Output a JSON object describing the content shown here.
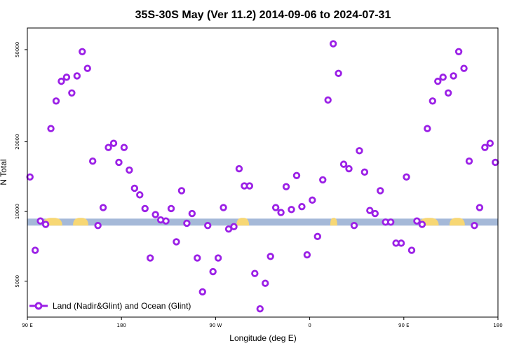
{
  "chart_data": {
    "type": "scatter",
    "title": "35S-30S May (Ver 11.2)   2014-09-06 to 2024-07-31",
    "xlabel": "Longitude (deg E)",
    "ylabel": "N Total",
    "xlim": [
      90,
      540
    ],
    "ylim_log": [
      3500,
      62000
    ],
    "x_ticks": [
      {
        "value": 90,
        "label": "90 E"
      },
      {
        "value": 180,
        "label": "180"
      },
      {
        "value": 270,
        "label": "90 W"
      },
      {
        "value": 360,
        "label": "0"
      },
      {
        "value": 450,
        "label": "90 E"
      },
      {
        "value": 540,
        "label": "180"
      }
    ],
    "y_ticks": [
      {
        "value": 5000,
        "label": "5000"
      },
      {
        "value": 10000,
        "label": "10000"
      },
      {
        "value": 20000,
        "label": "20000"
      },
      {
        "value": 50000,
        "label": "50000"
      }
    ],
    "series": [
      {
        "name": "Land (Nadir&Glint) and Ocean (Glint)",
        "color": "#9b20e6",
        "points": [
          [
            92.5,
            14100
          ],
          [
            97.5,
            6800
          ],
          [
            102.5,
            9100
          ],
          [
            107.5,
            8800
          ],
          [
            112.5,
            22800
          ],
          [
            117.5,
            30000
          ],
          [
            122.5,
            36500
          ],
          [
            127.5,
            38000
          ],
          [
            132.5,
            32500
          ],
          [
            137.5,
            38500
          ],
          [
            142.5,
            49000
          ],
          [
            147.5,
            41500
          ],
          [
            152.5,
            16500
          ],
          [
            157.5,
            8700
          ],
          [
            162.5,
            10400
          ],
          [
            167.5,
            18900
          ],
          [
            172.5,
            19700
          ],
          [
            177.5,
            16300
          ],
          [
            182.5,
            18900
          ],
          [
            187.5,
            15100
          ],
          [
            192.5,
            12600
          ],
          [
            197.5,
            11800
          ],
          [
            202.5,
            10300
          ],
          [
            207.5,
            6300
          ],
          [
            212.5,
            9700
          ],
          [
            217.5,
            9200
          ],
          [
            222.5,
            9100
          ],
          [
            227.5,
            10300
          ],
          [
            232.5,
            7400
          ],
          [
            237.5,
            12300
          ],
          [
            242.5,
            8900
          ],
          [
            247.5,
            9800
          ],
          [
            252.5,
            6300
          ],
          [
            257.5,
            4500
          ],
          [
            262.5,
            8700
          ],
          [
            267.5,
            5500
          ],
          [
            272.5,
            6300
          ],
          [
            277.5,
            10400
          ],
          [
            282.5,
            8400
          ],
          [
            287.5,
            8600
          ],
          [
            292.5,
            15300
          ],
          [
            297.5,
            12900
          ],
          [
            302.5,
            12900
          ],
          [
            307.5,
            5400
          ],
          [
            312.5,
            3800
          ],
          [
            317.5,
            4900
          ],
          [
            322.5,
            6400
          ],
          [
            327.5,
            10400
          ],
          [
            332.5,
            9900
          ],
          [
            337.5,
            12800
          ],
          [
            342.5,
            10200
          ],
          [
            347.5,
            14300
          ],
          [
            352.5,
            10500
          ],
          [
            357.5,
            6500
          ],
          [
            362.5,
            11200
          ],
          [
            367.5,
            7800
          ],
          [
            372.5,
            13700
          ],
          [
            377.5,
            30300
          ],
          [
            382.5,
            53000
          ],
          [
            387.5,
            39500
          ],
          [
            392.5,
            16000
          ],
          [
            397.5,
            15300
          ],
          [
            402.5,
            8700
          ],
          [
            407.5,
            18300
          ],
          [
            412.5,
            14800
          ],
          [
            417.5,
            10100
          ],
          [
            422.5,
            9800
          ],
          [
            427.5,
            12300
          ],
          [
            432.5,
            9000
          ],
          [
            437.5,
            9000
          ],
          [
            442.5,
            7300
          ],
          [
            447.5,
            7300
          ],
          [
            452.5,
            14100
          ],
          [
            457.5,
            6800
          ],
          [
            462.5,
            9100
          ],
          [
            467.5,
            8800
          ],
          [
            472.5,
            22800
          ],
          [
            477.5,
            30000
          ],
          [
            482.5,
            36500
          ],
          [
            487.5,
            38000
          ],
          [
            492.5,
            32500
          ],
          [
            497.5,
            38500
          ],
          [
            502.5,
            49000
          ],
          [
            507.5,
            41500
          ],
          [
            512.5,
            16500
          ],
          [
            517.5,
            8700
          ],
          [
            522.5,
            10400
          ],
          [
            527.5,
            18900
          ],
          [
            532.5,
            19700
          ],
          [
            537.5,
            16300
          ]
        ]
      }
    ],
    "legend_position": "bottom-left"
  }
}
